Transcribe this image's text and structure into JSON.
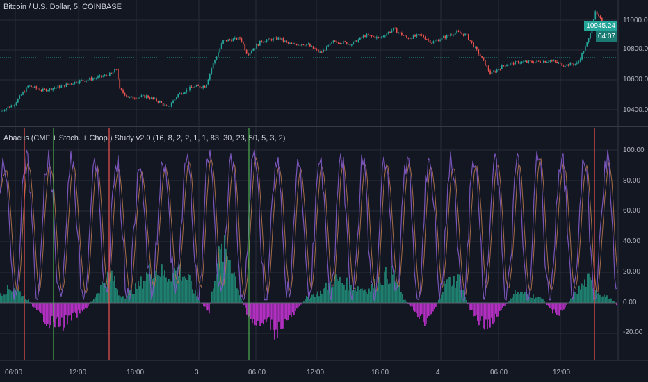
{
  "chart_title": "Bitcoin / U.S. Dollar, 5, COINBASE",
  "indicator_title": "Abacus (CMF + Stoch. + Chop.) Study v2.0 (16, 8, 2, 2, 1, 1, 83, 30, 23, 50, 5, 3, 2)",
  "current_price": "10945.24",
  "countdown": "04:07",
  "price_axis": [
    "11000.00",
    "10800.00",
    "10600.00",
    "10400.00"
  ],
  "indicator_axis": [
    "100.00",
    "80.00",
    "60.00",
    "40.00",
    "20.00",
    "0.00",
    "-20.00"
  ],
  "time_axis": [
    "06:00",
    "12:00",
    "18:00",
    "3",
    "06:00",
    "12:00",
    "18:00",
    "4",
    "06:00",
    "12:00"
  ],
  "colors": {
    "background": "#131722",
    "grid": "#2a2e39",
    "up_candle": "#26a69a",
    "down_candle": "#ef5350",
    "hist_positive": "#1f7f6f",
    "hist_negative": "#b02fbf",
    "stoch_k": "#7e57c2",
    "stoch_d": "#b5764a",
    "signal_red": "#ef5350",
    "signal_green": "#4caf50"
  },
  "chart_data": [
    {
      "type": "candlestick",
      "title": "Bitcoin / U.S. Dollar, 5, COINBASE",
      "ylim": [
        10330,
        11120
      ],
      "current_price": 10945.24,
      "price_path": [
        [
          0,
          10390
        ],
        [
          20,
          10440
        ],
        [
          40,
          10560
        ],
        [
          60,
          10530
        ],
        [
          90,
          10560
        ],
        [
          110,
          10590
        ],
        [
          135,
          10610
        ],
        [
          160,
          10640
        ],
        [
          168,
          10680
        ],
        [
          170,
          10540
        ],
        [
          185,
          10480
        ],
        [
          210,
          10490
        ],
        [
          230,
          10450
        ],
        [
          240,
          10410
        ],
        [
          255,
          10500
        ],
        [
          275,
          10550
        ],
        [
          295,
          10560
        ],
        [
          305,
          10700
        ],
        [
          320,
          10860
        ],
        [
          345,
          10880
        ],
        [
          355,
          10770
        ],
        [
          375,
          10860
        ],
        [
          400,
          10880
        ],
        [
          415,
          10840
        ],
        [
          440,
          10840
        ],
        [
          460,
          10780
        ],
        [
          480,
          10860
        ],
        [
          505,
          10840
        ],
        [
          525,
          10900
        ],
        [
          545,
          10880
        ],
        [
          565,
          10940
        ],
        [
          585,
          10880
        ],
        [
          605,
          10900
        ],
        [
          620,
          10850
        ],
        [
          640,
          10890
        ],
        [
          655,
          10920
        ],
        [
          670,
          10900
        ],
        [
          690,
          10760
        ],
        [
          705,
          10640
        ],
        [
          725,
          10700
        ],
        [
          745,
          10720
        ],
        [
          770,
          10720
        ],
        [
          790,
          10730
        ],
        [
          810,
          10700
        ],
        [
          830,
          10710
        ],
        [
          845,
          10860
        ],
        [
          855,
          11050
        ],
        [
          870,
          10960
        ],
        [
          885,
          10945
        ]
      ]
    },
    {
      "type": "histogram_with_lines",
      "title": "Abacus (CMF + Stoch. + Chop.) Study v2.0 (16, 8, 2, 2, 1, 1, 83, 30, 23, 50, 5, 3, 2)",
      "ylim": [
        -30,
        105
      ],
      "histogram_envelope": [
        [
          0,
          8
        ],
        [
          20,
          12
        ],
        [
          40,
          2
        ],
        [
          50,
          -6
        ],
        [
          70,
          -15
        ],
        [
          90,
          -16
        ],
        [
          100,
          -12
        ],
        [
          120,
          -6
        ],
        [
          135,
          4
        ],
        [
          150,
          18
        ],
        [
          160,
          22
        ],
        [
          170,
          6
        ],
        [
          180,
          5
        ],
        [
          200,
          14
        ],
        [
          220,
          28
        ],
        [
          240,
          20
        ],
        [
          255,
          26
        ],
        [
          270,
          18
        ],
        [
          285,
          2
        ],
        [
          300,
          -8
        ],
        [
          310,
          30
        ],
        [
          320,
          40
        ],
        [
          330,
          35
        ],
        [
          345,
          5
        ],
        [
          355,
          -8
        ],
        [
          370,
          -19
        ],
        [
          385,
          -14
        ],
        [
          395,
          -22
        ],
        [
          405,
          -16
        ],
        [
          420,
          -10
        ],
        [
          440,
          4
        ],
        [
          460,
          8
        ],
        [
          480,
          18
        ],
        [
          490,
          16
        ],
        [
          510,
          12
        ],
        [
          530,
          10
        ],
        [
          550,
          20
        ],
        [
          565,
          22
        ],
        [
          580,
          3
        ],
        [
          595,
          -6
        ],
        [
          610,
          -14
        ],
        [
          625,
          -4
        ],
        [
          640,
          16
        ],
        [
          660,
          18
        ],
        [
          675,
          -6
        ],
        [
          690,
          -14
        ],
        [
          705,
          -18
        ],
        [
          720,
          -6
        ],
        [
          740,
          8
        ],
        [
          760,
          6
        ],
        [
          780,
          3
        ],
        [
          790,
          -4
        ],
        [
          800,
          -10
        ],
        [
          810,
          -4
        ],
        [
          825,
          6
        ],
        [
          845,
          18
        ],
        [
          860,
          8
        ],
        [
          880,
          2
        ],
        [
          887,
          -2
        ]
      ],
      "signals": [
        {
          "x": 35,
          "color": "red"
        },
        {
          "x": 77,
          "color": "green"
        },
        {
          "x": 157,
          "color": "red"
        },
        {
          "x": 358,
          "color": "green"
        },
        {
          "x": 855,
          "color": "red"
        }
      ]
    }
  ]
}
